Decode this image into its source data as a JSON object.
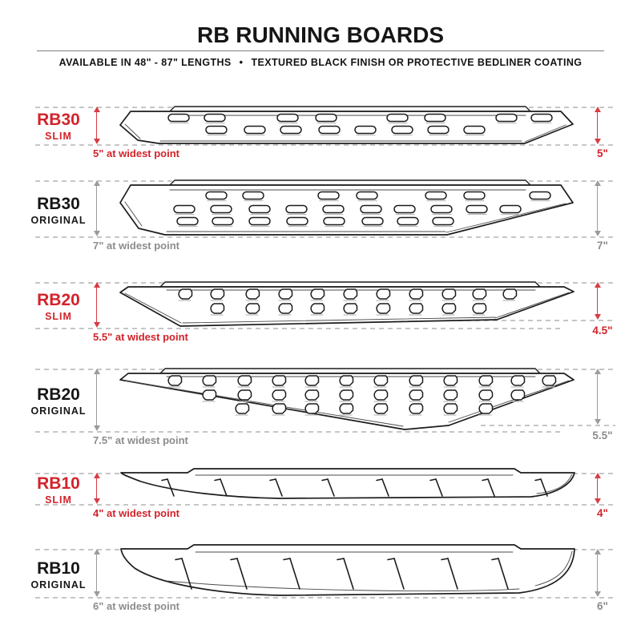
{
  "header": {
    "title": "RB RUNNING BOARDS",
    "availability": "AVAILABLE IN 48\" - 87\" LENGTHS",
    "bullet": "•",
    "finish": "TEXTURED BLACK FINISH OR PROTECTIVE BEDLINER COATING"
  },
  "colors": {
    "slim_accent": "#D2232A",
    "original_text": "#161616",
    "muted_text": "#8C8C8C",
    "arrow_gray": "#9B9B9B",
    "dash_gray": "#C6C6C6",
    "outline": "#1C1C1C"
  },
  "boards": [
    {
      "model": "RB30",
      "variant": "SLIM",
      "width_label": "5\" at widest point",
      "height_label": "5\""
    },
    {
      "model": "RB30",
      "variant": "ORIGINAL",
      "width_label": "7\" at widest point",
      "height_label": "7\""
    },
    {
      "model": "RB20",
      "variant": "SLIM",
      "width_label": "5.5\" at widest point",
      "height_label": "4.5\""
    },
    {
      "model": "RB20",
      "variant": "ORIGINAL",
      "width_label": "7.5\" at widest point",
      "height_label": "5.5\""
    },
    {
      "model": "RB10",
      "variant": "SLIM",
      "width_label": "4\" at widest point",
      "height_label": "4\""
    },
    {
      "model": "RB10",
      "variant": "ORIGINAL",
      "width_label": "6\" at widest point",
      "height_label": "6\""
    }
  ]
}
